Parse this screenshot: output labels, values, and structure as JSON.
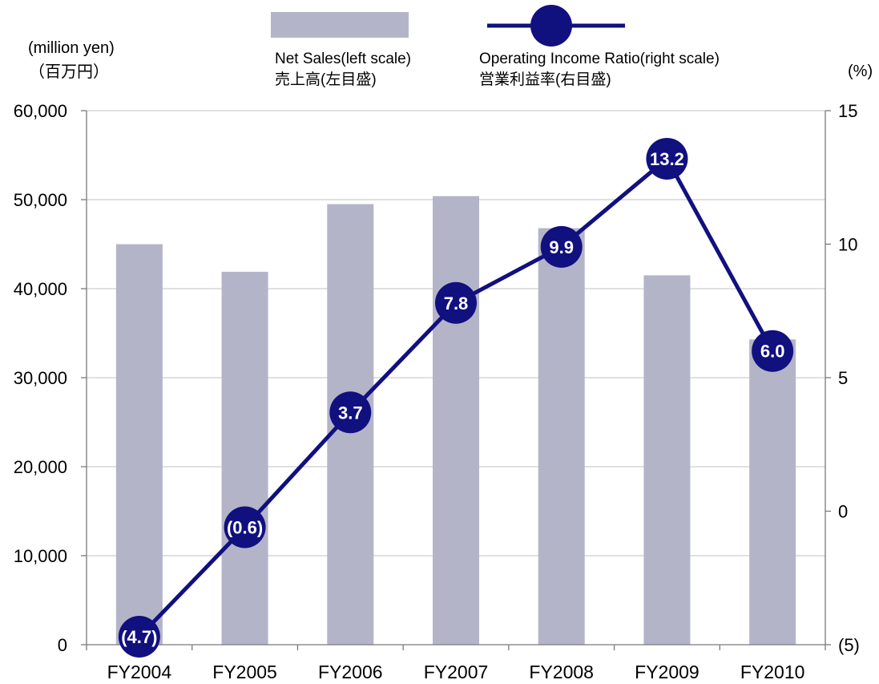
{
  "chart_data": {
    "type": "bar",
    "categories": [
      "FY2004",
      "FY2005",
      "FY2006",
      "FY2007",
      "FY2008",
      "FY2009",
      "FY2010"
    ],
    "series": [
      {
        "name": "Net Sales(left scale)",
        "name_ja": "売上高(左目盛)",
        "type": "bar",
        "axis": "left",
        "color": "#b4b4c9",
        "values": [
          45000,
          41900,
          49500,
          50400,
          46800,
          41500,
          34300
        ]
      },
      {
        "name": "Operating Income Ratio(right scale)",
        "name_ja": "営業利益率(右目盛)",
        "type": "line",
        "axis": "right",
        "color": "#10107f",
        "label_color": "#ffffff",
        "values": [
          -4.7,
          -0.6,
          3.7,
          7.8,
          9.9,
          13.2,
          6.0
        ],
        "labels": [
          "(4.7)",
          "(0.6)",
          "3.7",
          "7.8",
          "9.9",
          "13.2",
          "6.0"
        ]
      }
    ],
    "ylabel": "(million yen)",
    "ylabel_ja": "（百万円）",
    "y2label": "(%)",
    "ylim": [
      0,
      60000
    ],
    "y2lim": [
      -5,
      15
    ],
    "yticks": [
      0,
      10000,
      20000,
      30000,
      40000,
      50000,
      60000
    ],
    "ytick_labels": [
      "0",
      "10,000",
      "20,000",
      "30,000",
      "40,000",
      "50,000",
      "60,000"
    ],
    "y2ticks": [
      -5,
      0,
      5,
      10,
      15
    ],
    "y2tick_labels": [
      "(5)",
      "0",
      "5",
      "10",
      "15"
    ],
    "grid": true,
    "grid_color": "#c0c0c0",
    "axis_color": "#7a7a7a",
    "legend": "top"
  }
}
